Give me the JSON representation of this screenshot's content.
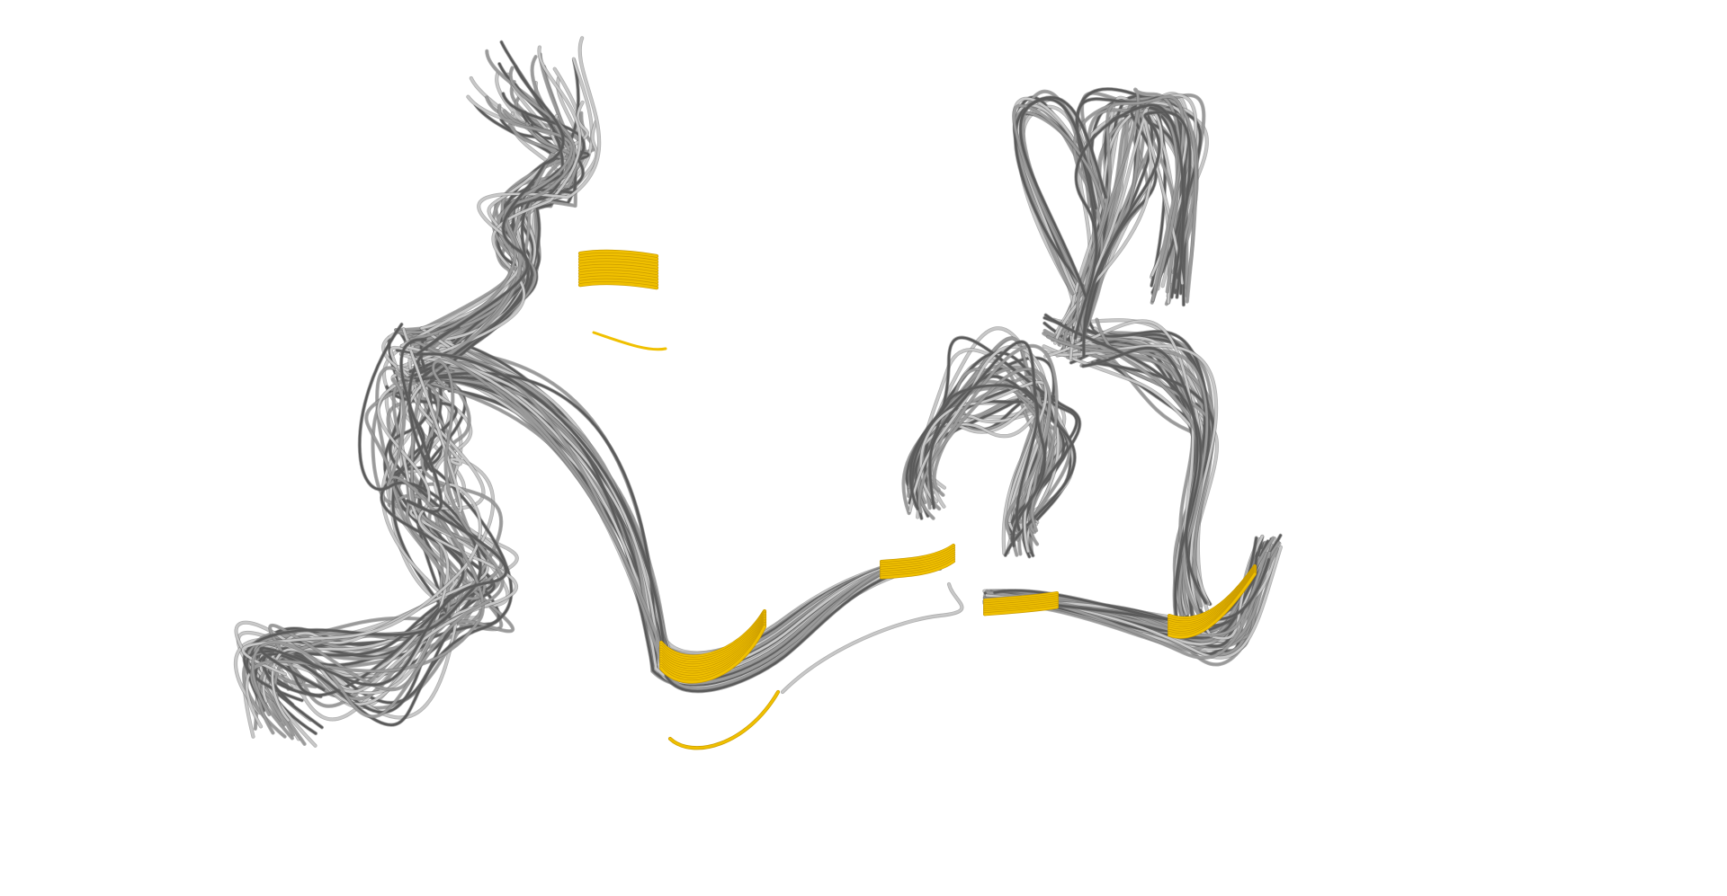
{
  "scene": {
    "background": "#ffffff",
    "palette": {
      "light_strand": "#c8c8c8",
      "mid_strand": "#9a9a9a",
      "dark_strand": "#5a5a5a",
      "outline": "#6e6e6e",
      "highlight": "#f0c000",
      "highlight_dark": "#c89a00"
    },
    "groups": [
      {
        "name": "left-structure",
        "strand_count": 40
      },
      {
        "name": "right-structure",
        "strand_count": 34
      }
    ]
  }
}
